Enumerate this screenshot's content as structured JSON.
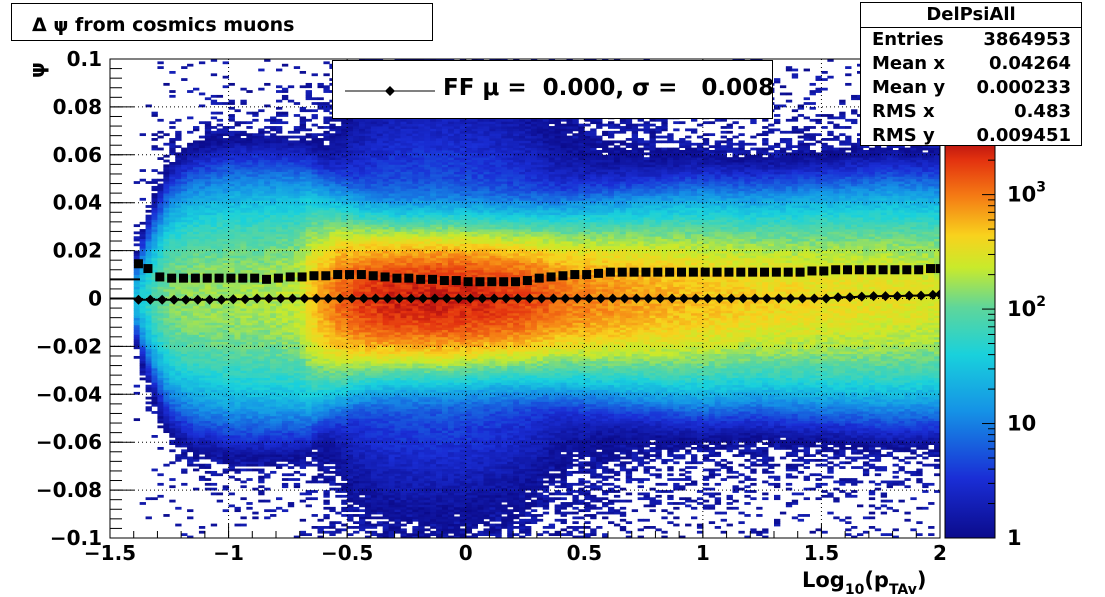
{
  "title": "Δ ψ from cosmics muons",
  "stats": {
    "name": "DelPsiAll",
    "rows": [
      {
        "key": "Entries",
        "value": "3864953"
      },
      {
        "key": "Mean x",
        "value": "0.04264"
      },
      {
        "key": "Mean y",
        "value": "0.000233"
      },
      {
        "key": "RMS x",
        "value": "0.483"
      },
      {
        "key": "RMS y",
        "value": "0.009451"
      }
    ]
  },
  "legend": {
    "label": "FF μ =  0.000, σ =   0.008"
  },
  "chart_data": {
    "type": "heatmap",
    "title": "Δ ψ from cosmics muons",
    "xlabel": "Log₁₀(p_TAv)",
    "ylabel": "ψ",
    "xlim": [
      -1.5,
      2
    ],
    "ylim": [
      -0.1,
      0.1
    ],
    "x_ticks": [
      "−1.5",
      "−1",
      "−0.5",
      "0",
      "0.5",
      "1",
      "1.5",
      "2"
    ],
    "y_ticks": [
      "−0.1",
      "−0.08",
      "−0.06",
      "−0.04",
      "−0.02",
      "0",
      "0.02",
      "0.04",
      "0.06",
      "0.08",
      "0.1"
    ],
    "z_scale": "log",
    "z_ticks": [
      "1",
      "10",
      "10²",
      "10³"
    ],
    "grid": true,
    "density": {
      "x": [
        -1.45,
        -1.35,
        -1.25,
        -1.15,
        -1.0,
        -0.85,
        -0.7,
        -0.6,
        -0.45,
        -0.3,
        -0.1,
        0.0,
        0.2,
        0.4,
        0.6,
        0.8,
        1.0,
        1.2,
        1.5,
        1.8,
        2.0
      ],
      "peak_count": [
        0,
        40,
        120,
        140,
        150,
        160,
        200,
        600,
        1500,
        2000,
        2100,
        2000,
        1600,
        900,
        700,
        550,
        450,
        380,
        320,
        280,
        250
      ],
      "spread": [
        0.0,
        0.012,
        0.018,
        0.02,
        0.021,
        0.021,
        0.02,
        0.016,
        0.013,
        0.012,
        0.012,
        0.012,
        0.012,
        0.013,
        0.014,
        0.015,
        0.016,
        0.016,
        0.017,
        0.018,
        0.018
      ]
    },
    "series": [
      {
        "name": "sigma",
        "marker": "square",
        "x": [
          -1.38,
          -1.34,
          -1.29,
          -1.24,
          -1.19,
          -1.14,
          -1.09,
          -1.04,
          -0.99,
          -0.94,
          -0.89,
          -0.84,
          -0.79,
          -0.74,
          -0.69,
          -0.64,
          -0.59,
          -0.54,
          -0.49,
          -0.44,
          -0.39,
          -0.34,
          -0.29,
          -0.24,
          -0.19,
          -0.14,
          -0.09,
          -0.04,
          0.01,
          0.06,
          0.11,
          0.16,
          0.21,
          0.26,
          0.31,
          0.36,
          0.41,
          0.46,
          0.51,
          0.56,
          0.61,
          0.66,
          0.71,
          0.76,
          0.81,
          0.86,
          0.91,
          0.96,
          1.01,
          1.06,
          1.11,
          1.16,
          1.21,
          1.26,
          1.31,
          1.36,
          1.41,
          1.46,
          1.51,
          1.56,
          1.61,
          1.66,
          1.71,
          1.76,
          1.81,
          1.86,
          1.91,
          1.96,
          2.0
        ],
        "y": [
          0.0145,
          0.0125,
          0.009,
          0.0085,
          0.0085,
          0.0085,
          0.0085,
          0.0085,
          0.0085,
          0.0085,
          0.0085,
          0.008,
          0.0085,
          0.009,
          0.009,
          0.0095,
          0.0095,
          0.01,
          0.01,
          0.01,
          0.0095,
          0.009,
          0.0085,
          0.0085,
          0.008,
          0.008,
          0.0075,
          0.0075,
          0.007,
          0.007,
          0.007,
          0.007,
          0.007,
          0.0075,
          0.0085,
          0.009,
          0.0095,
          0.01,
          0.01,
          0.0105,
          0.011,
          0.011,
          0.011,
          0.011,
          0.011,
          0.011,
          0.011,
          0.011,
          0.011,
          0.011,
          0.011,
          0.011,
          0.011,
          0.011,
          0.011,
          0.011,
          0.011,
          0.0115,
          0.0115,
          0.012,
          0.012,
          0.012,
          0.012,
          0.012,
          0.012,
          0.012,
          0.012,
          0.0125,
          0.0125
        ]
      },
      {
        "name": "mean",
        "marker": "diamond",
        "x": [
          -1.38,
          -1.33,
          -1.28,
          -1.23,
          -1.18,
          -1.13,
          -1.08,
          -1.03,
          -0.98,
          -0.93,
          -0.88,
          -0.83,
          -0.78,
          -0.73,
          -0.68,
          -0.63,
          -0.58,
          -0.53,
          -0.48,
          -0.43,
          -0.38,
          -0.33,
          -0.28,
          -0.23,
          -0.18,
          -0.13,
          -0.08,
          -0.03,
          0.02,
          0.07,
          0.12,
          0.17,
          0.22,
          0.27,
          0.32,
          0.37,
          0.42,
          0.47,
          0.52,
          0.57,
          0.62,
          0.67,
          0.72,
          0.77,
          0.82,
          0.87,
          0.92,
          0.97,
          1.02,
          1.07,
          1.12,
          1.17,
          1.22,
          1.27,
          1.32,
          1.37,
          1.42,
          1.47,
          1.52,
          1.57,
          1.62,
          1.67,
          1.72,
          1.77,
          1.82,
          1.87,
          1.92,
          1.97,
          2.0
        ],
        "y": [
          -0.0005,
          -0.0005,
          -0.0005,
          -0.0005,
          -0.0005,
          -0.0005,
          -0.0005,
          -0.0005,
          -0.0003,
          -0.0003,
          0.0,
          0.0,
          0.0,
          0.0,
          0.0,
          0.0,
          0.0,
          0.0,
          0.0,
          0.0,
          0.0,
          0.0,
          0.0,
          0.0,
          0.0,
          0.0,
          0.0,
          0.0,
          0.0,
          0.0,
          0.0,
          0.0,
          0.0,
          0.0,
          0.0,
          0.0,
          0.0,
          0.0,
          0.0,
          0.0,
          0.0,
          0.0,
          0.0,
          0.0,
          0.0,
          0.0,
          0.0,
          0.0,
          0.0,
          0.0,
          0.0,
          0.0,
          0.0,
          0.0,
          0.0,
          0.0,
          0.0,
          0.0,
          0.0,
          0.0005,
          0.0005,
          0.0008,
          0.001,
          0.001,
          0.001,
          0.0012,
          0.0012,
          0.0015,
          0.0018
        ]
      }
    ]
  }
}
